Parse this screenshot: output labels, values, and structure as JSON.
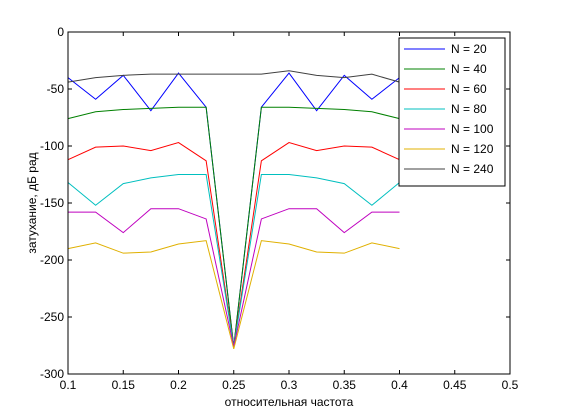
{
  "chart_data": {
    "type": "line",
    "title": "",
    "xlabel": "относительная частота",
    "ylabel": "затухание, дБ рад",
    "xlim": [
      0.1,
      0.5
    ],
    "ylim": [
      -300,
      0
    ],
    "xticks": [
      0.1,
      0.15,
      0.2,
      0.25,
      0.3,
      0.35,
      0.4,
      0.45,
      0.5
    ],
    "xtick_labels": [
      "0.1",
      "0.15",
      "0.2",
      "0.25",
      "0.3",
      "0.35",
      "0.4",
      "0.45",
      "0.5"
    ],
    "yticks": [
      0,
      -50,
      -100,
      -150,
      -200,
      -250,
      -300
    ],
    "ytick_labels": [
      "0",
      "-50",
      "-100",
      "-150",
      "-200",
      "-250",
      "-300"
    ],
    "grid": false,
    "legend_position": "top-right",
    "x": [
      0.1,
      0.125,
      0.15,
      0.175,
      0.2,
      0.225,
      0.25,
      0.275,
      0.3,
      0.325,
      0.35,
      0.375,
      0.4
    ],
    "series": [
      {
        "name": "N = 20",
        "color": "#0000ff",
        "values": [
          -40,
          -59,
          -38,
          -69,
          -36,
          -66,
          -276,
          -66,
          -36,
          -69,
          -38,
          -59,
          -40
        ]
      },
      {
        "name": "N = 40",
        "color": "#008000",
        "values": [
          -76,
          -70,
          -68,
          -67,
          -66,
          -66,
          -276,
          -66,
          -66,
          -67,
          -68,
          -70,
          -76
        ]
      },
      {
        "name": "N = 60",
        "color": "#ff0000",
        "values": [
          -112,
          -101,
          -100,
          -104,
          -97,
          -113,
          -276,
          -113,
          -97,
          -104,
          -100,
          -101,
          -112
        ]
      },
      {
        "name": "N = 80",
        "color": "#00bfbf",
        "values": [
          -132,
          -152,
          -133,
          -128,
          -125,
          -125,
          -276,
          -125,
          -125,
          -128,
          -133,
          -152,
          -132
        ]
      },
      {
        "name": "N = 100",
        "color": "#bf00bf",
        "values": [
          -158,
          -158,
          -176,
          -155,
          -155,
          -164,
          -276,
          -164,
          -155,
          -155,
          -176,
          -158,
          -158
        ]
      },
      {
        "name": "N = 120",
        "color": "#e0b000",
        "values": [
          -190,
          -185,
          -194,
          -193,
          -186,
          -183,
          -278,
          -183,
          -186,
          -193,
          -194,
          -185,
          -190
        ]
      },
      {
        "name": "N = 240",
        "color": "#404040",
        "values": [
          -44,
          -40,
          -38,
          -37,
          -37,
          -37,
          -37,
          -37,
          -34,
          -38,
          -40,
          -37,
          -44
        ]
      }
    ]
  }
}
